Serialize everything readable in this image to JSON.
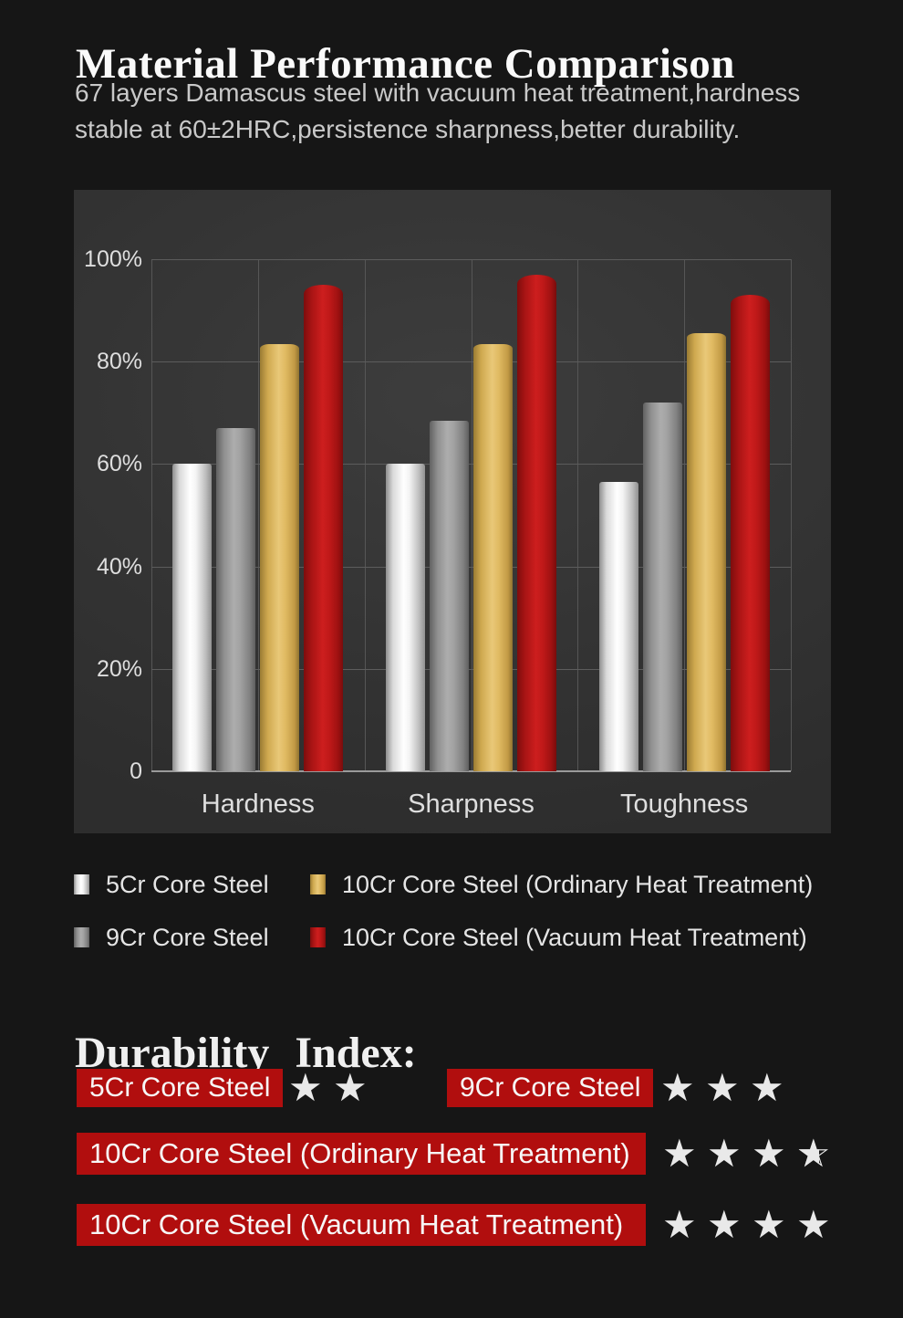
{
  "header": {
    "title": "Material Performance Comparison",
    "subtitle": "67 layers Damascus steel with vacuum heat treatment,hardness stable at 60±2HRC,persistence sharpness,better durability.",
    "subtitle_lines": [
      "67 layers Damascus steel with vacuum heat treatment,hardness",
      "stable at 60±2HRC,persistence sharpness,better durability."
    ]
  },
  "chart_data": {
    "type": "bar",
    "categories": [
      "Hardness",
      "Sharpness",
      "Toughness"
    ],
    "series": [
      {
        "name": "5Cr Core Steel",
        "color": "#f4f4f4",
        "values": [
          60,
          60,
          56.5
        ]
      },
      {
        "name": "9Cr Core Steel",
        "color": "#a3a3a3",
        "values": [
          67,
          68.5,
          72
        ]
      },
      {
        "name": "10Cr Core Steel (Ordinary Heat Treatment)",
        "color": "#e4be69",
        "values": [
          83.5,
          83.5,
          85.5
        ]
      },
      {
        "name": "10Cr Core Steel (Vacuum Heat Treatment)",
        "color": "#c81d1d",
        "values": [
          95,
          97,
          93
        ]
      }
    ],
    "title": "",
    "xlabel": "",
    "ylabel": "",
    "ylim": [
      0,
      100
    ],
    "ytick_values": [
      0,
      20,
      40,
      60,
      80,
      100
    ],
    "ytick_labels": [
      "0",
      "20%",
      "40%",
      "60%",
      "80%",
      "100%"
    ],
    "grid": true,
    "legend_position": "bottom",
    "legend_order": [
      0,
      2,
      1,
      3
    ]
  },
  "durability": {
    "heading": "Durability Index:",
    "items": [
      {
        "label": "5Cr Core Steel",
        "stars": 2
      },
      {
        "label": "9Cr Core Steel",
        "stars": 3
      },
      {
        "label": "10Cr Core Steel (Ordinary Heat Treatment)",
        "stars": 3.5
      },
      {
        "label": "10Cr Core Steel (Vacuum Heat Treatment)",
        "stars": 4
      }
    ]
  },
  "colors": {
    "page_background": "#161616",
    "panel_background": "#343434",
    "gridline": "#5c5c5c",
    "badge_red": "#b10e0e",
    "star": "#e9e9e9",
    "bar_silver": "#f4f4f4",
    "bar_gray": "#a3a3a3",
    "bar_gold": "#e4be69",
    "bar_red": "#c81d1d",
    "text_primary": "#fafafa",
    "text_secondary": "#c9c9c9"
  }
}
